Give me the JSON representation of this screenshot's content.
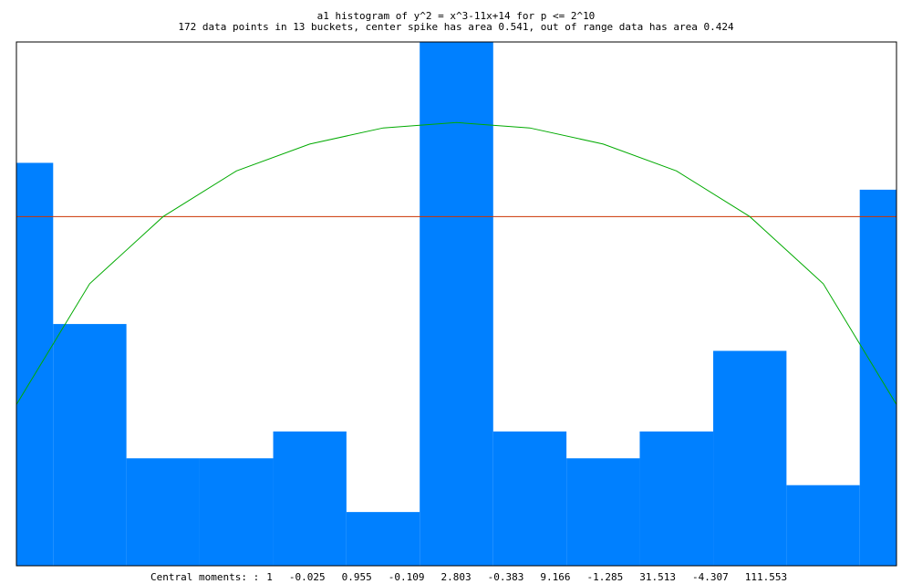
{
  "chart_data": {
    "type": "histogram",
    "title": "a1 histogram of y^2 = x^3-11x+14 for p <= 2^10",
    "subtitle": "172 data points in 13 buckets, center spike has area 0.541, out of range data has area 0.424",
    "bins": [
      -2.167,
      -1.833,
      -1.5,
      -1.167,
      -0.833,
      -0.5,
      -0.167,
      0.167,
      0.5,
      0.833,
      1.167,
      1.5,
      1.833,
      2.167
    ],
    "values": [
      15,
      9,
      4,
      4,
      5,
      2,
      19.5,
      5,
      4,
      5,
      8,
      3,
      14
    ],
    "color": "#0080ff",
    "xlim": [
      -2,
      2
    ],
    "ylim": [
      0,
      19.5
    ],
    "reference_line": {
      "value": 13,
      "color": "#cc3300"
    },
    "density_curve": {
      "color": "#00aa00",
      "x": [
        -2,
        -1.667,
        -1.333,
        -1,
        -0.667,
        -0.333,
        0,
        0.333,
        0.667,
        1,
        1.333,
        1.667,
        2
      ],
      "values": [
        6.0,
        10.5,
        13.0,
        14.7,
        15.7,
        16.3,
        16.5,
        16.3,
        15.7,
        14.7,
        13.0,
        10.5,
        6.0
      ]
    },
    "moments_label": "Central moments: :",
    "moments": [
      1,
      -0.025,
      0.955,
      -0.109,
      2.803,
      -0.383,
      9.166,
      -1.285,
      31.513,
      -4.307,
      111.553
    ]
  }
}
